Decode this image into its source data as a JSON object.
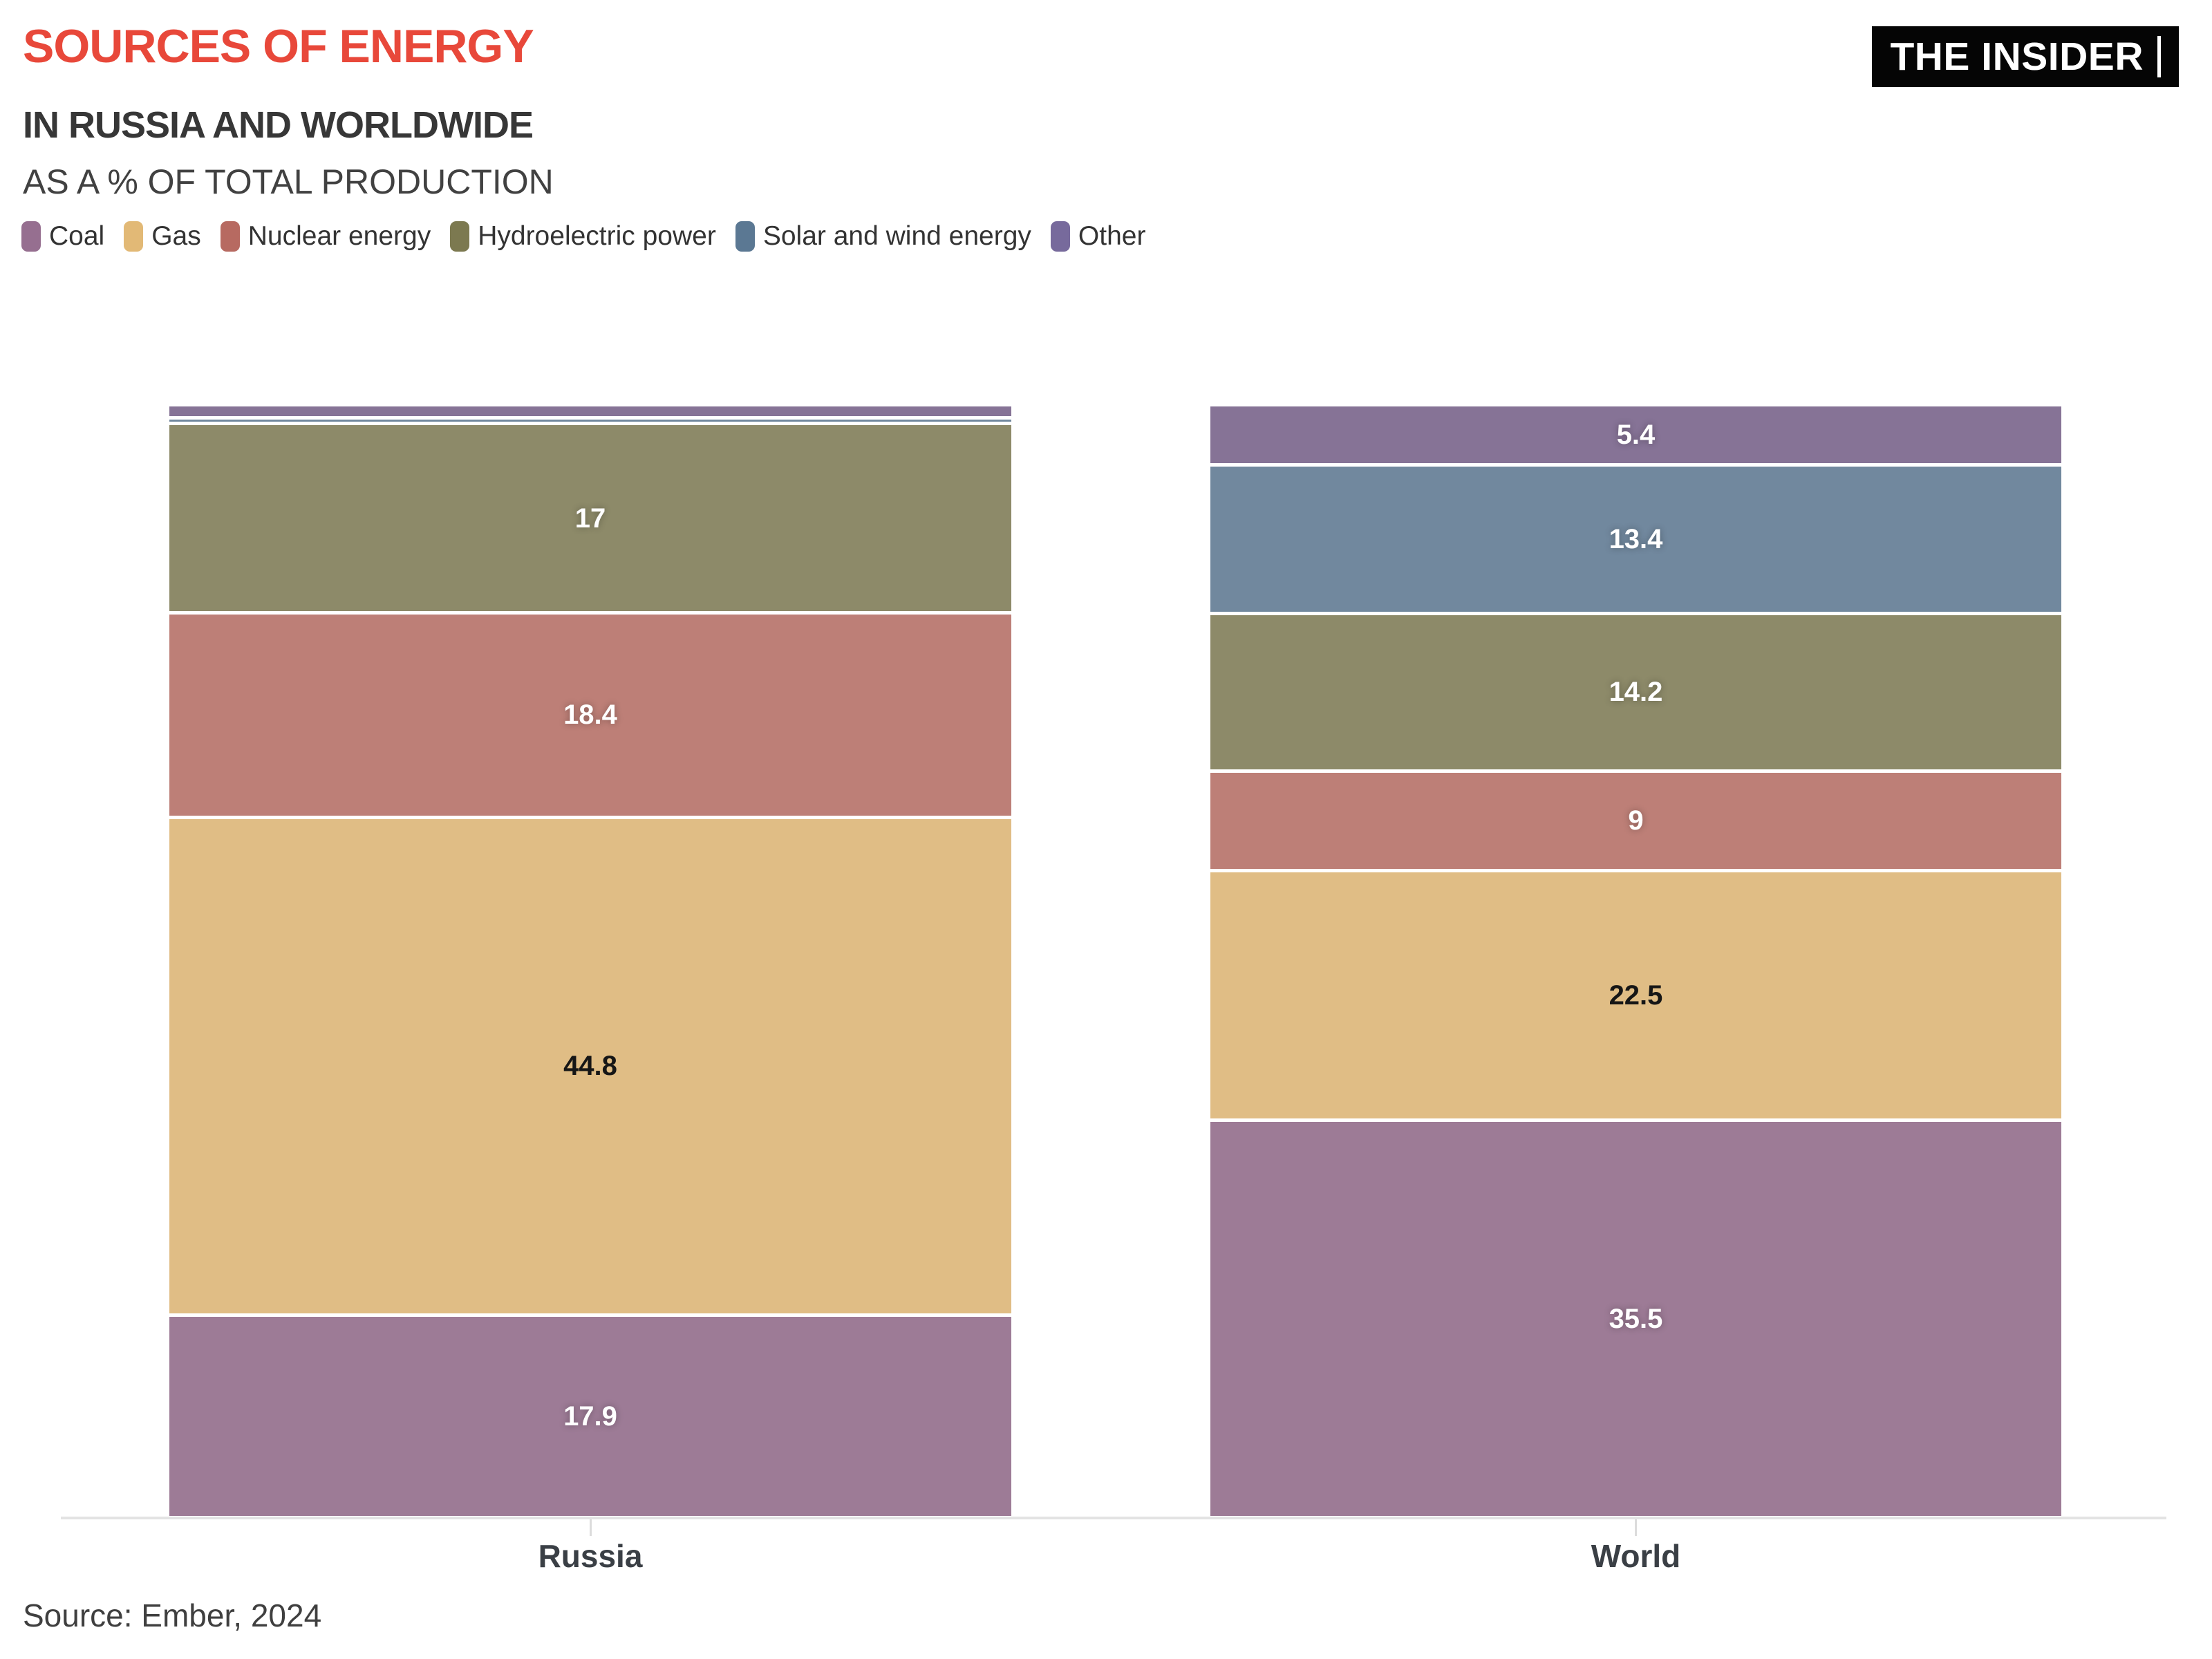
{
  "header": {
    "title": "SOURCES OF ENERGY",
    "subtitle": "IN RUSSIA AND WORLDWIDE",
    "caption": "AS A % OF TOTAL PRODUCTION",
    "logo_text": "THE INSIDER"
  },
  "legend": [
    {
      "label": "Coal",
      "color": "#966f90"
    },
    {
      "label": "Gas",
      "color": "#e2b976"
    },
    {
      "label": "Nuclear energy",
      "color": "#b76a61"
    },
    {
      "label": "Hydroelectric power",
      "color": "#7c7950"
    },
    {
      "label": "Solar and wind energy",
      "color": "#5b7893"
    },
    {
      "label": "Other",
      "color": "#776a9c"
    }
  ],
  "chart_data": {
    "type": "bar",
    "stacking": "percent",
    "title": "SOURCES OF ENERGY IN RUSSIA AND WORLDWIDE AS A % OF TOTAL PRODUCTION",
    "categories": [
      "Russia",
      "World"
    ],
    "ylim": [
      0,
      100
    ],
    "grid": false,
    "legend_position": "top",
    "axis_line_color": "#e3e3e3",
    "stack_order_bottom_to_top": [
      "Coal",
      "Gas",
      "Nuclear energy",
      "Hydroelectric power",
      "Solar and wind energy",
      "Other"
    ],
    "series": [
      {
        "name": "Coal",
        "bar_color": "#9d7b96",
        "label_style": "light",
        "values": [
          17.9,
          35.5
        ],
        "labels": [
          "17.9",
          "35.5"
        ]
      },
      {
        "name": "Gas",
        "bar_color": "#e0bd85",
        "label_style": "dark",
        "values": [
          44.8,
          22.5
        ],
        "labels": [
          "44.8",
          "22.5"
        ]
      },
      {
        "name": "Nuclear energy",
        "bar_color": "#bd7f77",
        "label_style": "light",
        "values": [
          18.4,
          9
        ],
        "labels": [
          "18.4",
          "9"
        ]
      },
      {
        "name": "Hydroelectric power",
        "bar_color": "#8d8a69",
        "label_style": "light",
        "values": [
          17,
          14.2
        ],
        "labels": [
          "17",
          "14.2"
        ]
      },
      {
        "name": "Solar and wind energy",
        "bar_color": "#71889e",
        "label_style": "light",
        "values": [
          0.5,
          13.4
        ],
        "labels": [
          "",
          "13.4"
        ]
      },
      {
        "name": "Other",
        "bar_color": "#867396",
        "label_style": "light",
        "values": [
          1.2,
          5.4
        ],
        "labels": [
          "",
          "5.4"
        ]
      }
    ],
    "note": "Russia values for 'Solar and wind energy' (~0.5) and 'Other' (~1.2) carry no data labels in the image; they are estimated from segment pixel heights."
  },
  "footer": {
    "source": "Source: Ember, 2024"
  }
}
